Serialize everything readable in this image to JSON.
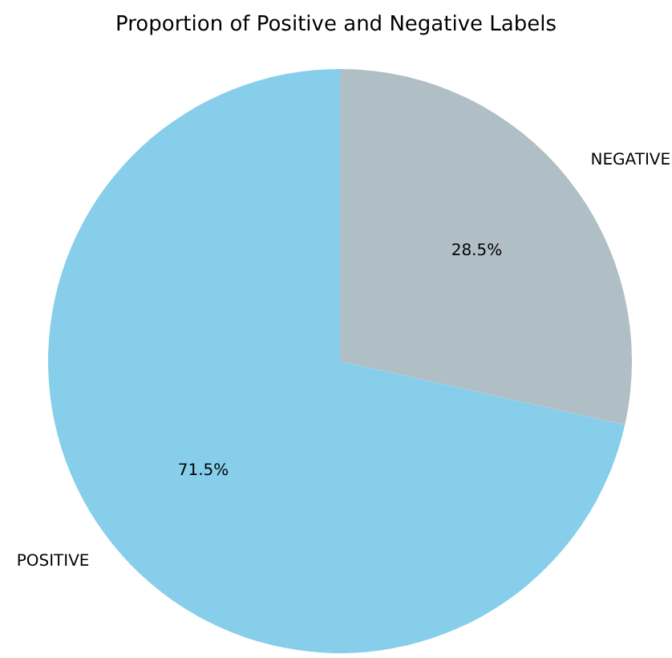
{
  "chart_data": {
    "type": "pie",
    "title": "Proportion of Positive and Negative Labels",
    "categories": [
      "POSITIVE",
      "NEGATIVE"
    ],
    "values": [
      71.5,
      28.5
    ],
    "colors": [
      "#87ceeb",
      "#b0bec5"
    ],
    "value_labels": [
      "71.5%",
      "28.5%"
    ],
    "legend": false
  }
}
